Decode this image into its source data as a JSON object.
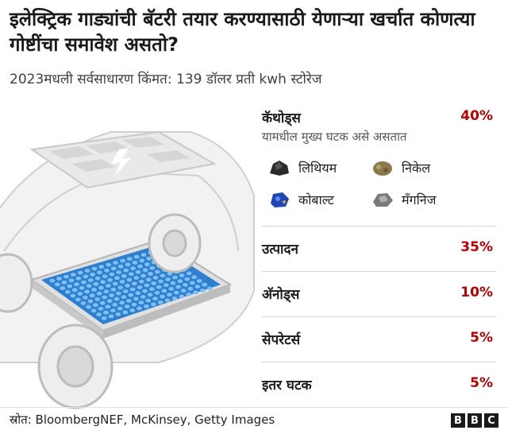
{
  "title": "इलेक्ट्रिक गाड्यांची बॅटरी तयार करण्यासाठी येणाऱ्या खर्चात कोणत्या गोष्टींचा समावेश असतो?",
  "subtitle": "2023मधली सर्वसाधारण किंमत: 139 डॉलर प्रती kwh स्टोरेज",
  "chart_data": {
    "type": "table",
    "title": "इलेक्ट्रिक गाड्यांची बॅटरी तयार करण्यासाठी येणाऱ्या खर्चात कोणत्या गोष्टींचा समावेश असतो?",
    "subtitle": "2023मधली सर्वसाधारण किंमत: 139 डॉलर प्रती kwh स्टोरेज",
    "categories": [
      "कॅथोड्स",
      "उत्पादन",
      "अ‌ॅनोड्स",
      "सेपरेटर्स",
      "इतर घटक"
    ],
    "values": [
      40,
      35,
      10,
      5,
      5
    ],
    "value_labels": [
      "40%",
      "35%",
      "10%",
      "5%",
      "5%"
    ],
    "cathode_note": "यामधील मुख्य घटक असे असतात",
    "cathode_minerals": [
      "लिथियम",
      "निकेल",
      "कोबाल्ट",
      "मॅंगनिज"
    ],
    "accent_color": "#b80000"
  },
  "mineral_icons": [
    "lithium-rock-icon",
    "nickel-rock-icon",
    "cobalt-rock-icon",
    "manganese-rock-icon"
  ],
  "footer": {
    "source": "स्रोत: BloombergNEF, McKinsey, Getty Images",
    "brand_letters": [
      "B",
      "B",
      "C"
    ]
  }
}
